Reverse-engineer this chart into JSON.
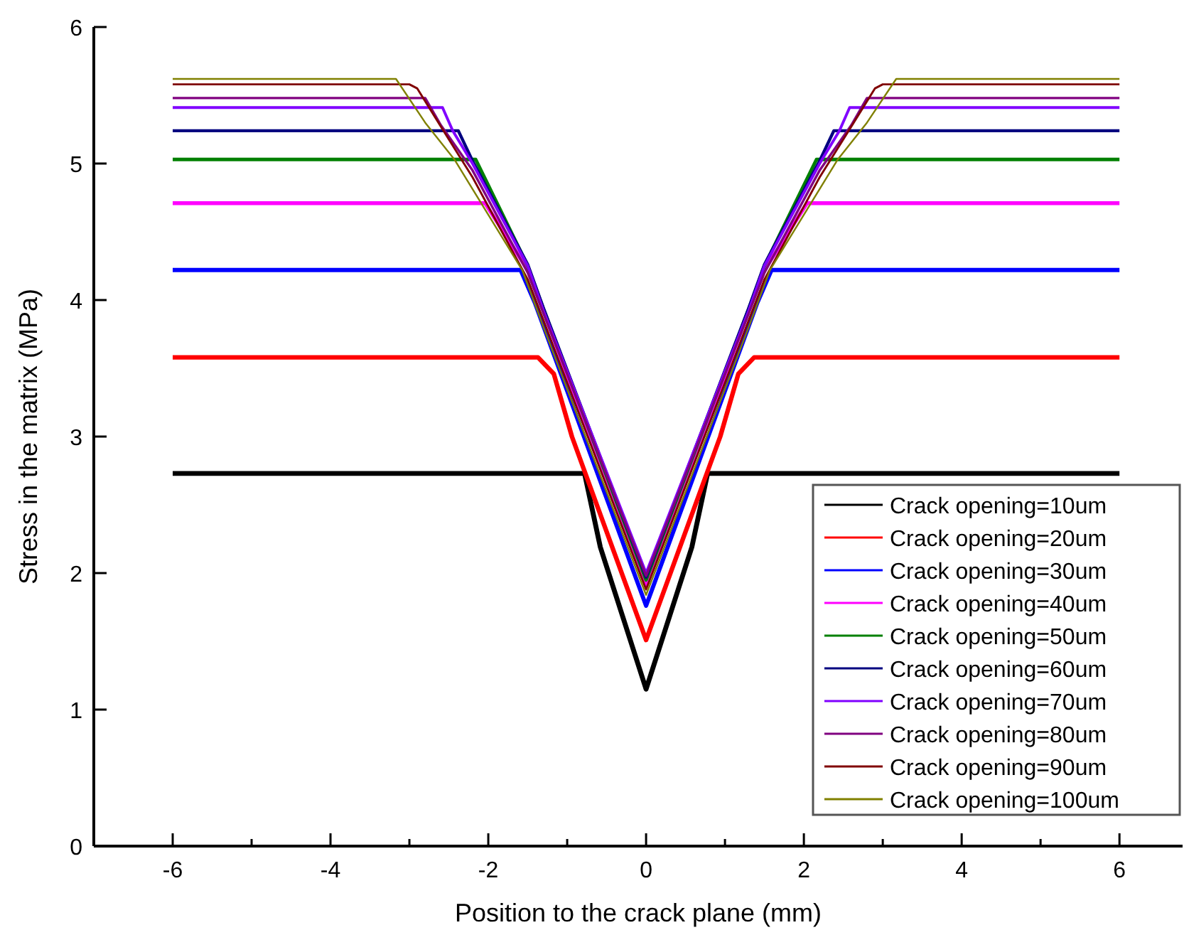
{
  "chart_data": {
    "type": "line",
    "xlabel": "Position to the crack plane (mm)",
    "ylabel": "Stress in the matrix (MPa)",
    "xlim": [
      -7,
      6.8
    ],
    "ylim": [
      0,
      6
    ],
    "xticks": [
      -6,
      {
        "value": -5,
        "label": null
      },
      -4,
      {
        "value": -3,
        "label": null
      },
      -2,
      {
        "value": -1,
        "label": null
      },
      0,
      {
        "value": 1,
        "label": null
      },
      2,
      {
        "value": 3,
        "label": null
      },
      4,
      {
        "value": 5,
        "label": null
      },
      6
    ],
    "yticks": [
      0,
      1,
      2,
      3,
      4,
      5,
      6
    ],
    "grid": false,
    "legend": "bottom right",
    "marker": "none",
    "line_style": "solid",
    "series": [
      {
        "name": "Crack opening=10um",
        "color": "#000000",
        "x": [
          -6,
          -0.78,
          -0.58,
          0,
          0.58,
          0.78,
          6
        ],
        "values": [
          2.73,
          2.73,
          2.19,
          1.15,
          2.19,
          2.73,
          2.73
        ]
      },
      {
        "name": "Crack opening=20um",
        "color": "#ff0000",
        "x": [
          -6,
          -1.37,
          -1.17,
          -0.94,
          0,
          0.94,
          1.17,
          1.37,
          6
        ],
        "values": [
          3.58,
          3.58,
          3.46,
          3.0,
          1.51,
          3.0,
          3.46,
          3.58,
          3.58
        ]
      },
      {
        "name": "Crack opening=30um",
        "color": "#0000ff",
        "x": [
          -6,
          -1.59,
          -1.41,
          0,
          1.41,
          1.59,
          6
        ],
        "values": [
          4.22,
          4.22,
          3.98,
          1.76,
          3.98,
          4.22,
          4.22
        ]
      },
      {
        "name": "Crack opening=40um",
        "color": "#ff00ff",
        "x": [
          -6,
          -2.04,
          -1.5,
          -1.3,
          0,
          1.3,
          1.5,
          2.04,
          6
        ],
        "values": [
          4.71,
          4.71,
          4.22,
          3.92,
          1.9,
          3.92,
          4.22,
          4.71,
          4.71
        ]
      },
      {
        "name": "Crack opening=50um",
        "color": "#008000",
        "x": [
          -6,
          -2.16,
          -1.5,
          -1.3,
          0,
          1.3,
          1.5,
          2.16,
          6
        ],
        "values": [
          5.03,
          5.03,
          4.25,
          3.93,
          1.95,
          3.93,
          4.25,
          5.03,
          5.03
        ]
      },
      {
        "name": "Crack opening=60um",
        "color": "#000080",
        "x": [
          -6,
          -2.38,
          -2.2,
          -1.5,
          -1.3,
          0,
          1.3,
          1.5,
          2.2,
          2.38,
          6
        ],
        "values": [
          5.24,
          5.24,
          5.02,
          4.26,
          3.94,
          1.97,
          3.94,
          4.26,
          5.02,
          5.24,
          5.24
        ]
      },
      {
        "name": "Crack opening=70um",
        "color": "#8000ff",
        "x": [
          -6,
          -2.58,
          -2.45,
          -2.2,
          -1.5,
          -1.3,
          0,
          1.3,
          1.5,
          2.2,
          2.45,
          2.58,
          6
        ],
        "values": [
          5.41,
          5.41,
          5.24,
          5.0,
          4.25,
          3.92,
          2.0,
          3.92,
          4.25,
          5.0,
          5.24,
          5.41,
          5.41
        ]
      },
      {
        "name": "Crack opening=80um",
        "color": "#800080",
        "x": [
          -6,
          -2.8,
          -2.6,
          -2.2,
          -1.5,
          -1.3,
          0,
          1.3,
          1.5,
          2.2,
          2.6,
          2.8,
          6
        ],
        "values": [
          5.48,
          5.48,
          5.28,
          4.95,
          4.2,
          3.9,
          1.98,
          3.9,
          4.2,
          4.95,
          5.28,
          5.48,
          5.48
        ]
      },
      {
        "name": "Crack opening=90um",
        "color": "#800000",
        "x": [
          -6,
          -3.0,
          -2.9,
          -2.6,
          -2.2,
          -1.5,
          -1.3,
          0,
          1.3,
          1.5,
          2.2,
          2.6,
          2.9,
          3.0,
          6
        ],
        "values": [
          5.58,
          5.58,
          5.55,
          5.27,
          4.9,
          4.15,
          3.85,
          1.88,
          3.85,
          4.15,
          4.9,
          5.27,
          5.55,
          5.58,
          5.58
        ]
      },
      {
        "name": "Crack opening=100um",
        "color": "#808000",
        "x": [
          -6,
          -3.17,
          -2.8,
          -2.43,
          -1.57,
          -1.3,
          0,
          1.3,
          1.57,
          2.43,
          2.8,
          3.17,
          6
        ],
        "values": [
          5.62,
          5.62,
          5.3,
          5.03,
          4.22,
          3.8,
          1.84,
          3.8,
          4.22,
          5.03,
          5.3,
          5.62,
          5.62
        ]
      }
    ]
  }
}
